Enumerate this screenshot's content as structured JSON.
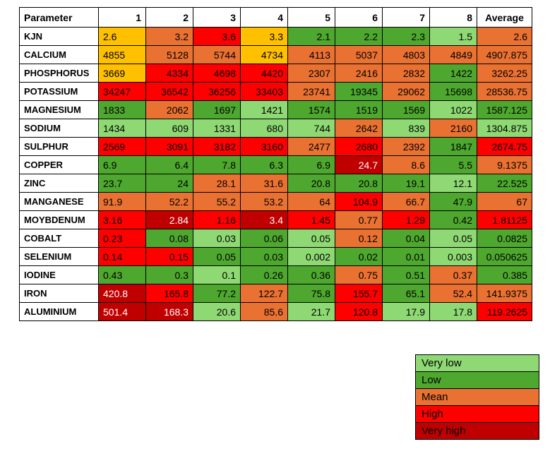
{
  "chart_data": {
    "type": "heatmap",
    "title": "",
    "columns": [
      "Parameter",
      "1",
      "2",
      "3",
      "4",
      "5",
      "6",
      "7",
      "8",
      "Average"
    ],
    "colors": {
      "vlow": "#8ED973",
      "low": "#4EA72E",
      "gold": "#FFC000",
      "mean": "#E97132",
      "high": "#FF0000",
      "vhigh": "#C00000"
    },
    "text_default": "#000000",
    "text_on_vhigh": "#FFFFFF",
    "rows": [
      {
        "label": "KJN",
        "cells": [
          {
            "v": "2.6",
            "c": "gold"
          },
          {
            "v": "3.2",
            "c": "mean"
          },
          {
            "v": "3.6",
            "c": "high"
          },
          {
            "v": "3.3",
            "c": "gold"
          },
          {
            "v": "2.1",
            "c": "low"
          },
          {
            "v": "2.2",
            "c": "low"
          },
          {
            "v": "2.3",
            "c": "low"
          },
          {
            "v": "1.5",
            "c": "vlow"
          },
          {
            "v": "2.6",
            "c": "mean"
          }
        ]
      },
      {
        "label": "CALCIUM",
        "cells": [
          {
            "v": "4855",
            "c": "gold"
          },
          {
            "v": "5128",
            "c": "mean"
          },
          {
            "v": "5744",
            "c": "mean"
          },
          {
            "v": "4734",
            "c": "gold"
          },
          {
            "v": "4113",
            "c": "mean"
          },
          {
            "v": "5037",
            "c": "mean"
          },
          {
            "v": "4803",
            "c": "mean"
          },
          {
            "v": "4849",
            "c": "mean"
          },
          {
            "v": "4907.875",
            "c": "mean"
          }
        ]
      },
      {
        "label": "PHOSPHORUS",
        "cells": [
          {
            "v": "3669",
            "c": "gold"
          },
          {
            "v": "4334",
            "c": "high"
          },
          {
            "v": "4698",
            "c": "high"
          },
          {
            "v": "4420",
            "c": "high"
          },
          {
            "v": "2307",
            "c": "mean"
          },
          {
            "v": "2416",
            "c": "mean"
          },
          {
            "v": "2832",
            "c": "mean"
          },
          {
            "v": "1422",
            "c": "low"
          },
          {
            "v": "3262.25",
            "c": "mean"
          }
        ]
      },
      {
        "label": "POTASSIUM",
        "cells": [
          {
            "v": "34247",
            "c": "high"
          },
          {
            "v": "36542",
            "c": "high"
          },
          {
            "v": "36256",
            "c": "high"
          },
          {
            "v": "33403",
            "c": "high"
          },
          {
            "v": "23741",
            "c": "mean"
          },
          {
            "v": "19345",
            "c": "low"
          },
          {
            "v": "29062",
            "c": "mean"
          },
          {
            "v": "15698",
            "c": "low"
          },
          {
            "v": "28536.75",
            "c": "mean"
          }
        ]
      },
      {
        "label": "MAGNESIUM",
        "cells": [
          {
            "v": "1833",
            "c": "low"
          },
          {
            "v": "2062",
            "c": "mean"
          },
          {
            "v": "1697",
            "c": "low"
          },
          {
            "v": "1421",
            "c": "vlow"
          },
          {
            "v": "1574",
            "c": "low"
          },
          {
            "v": "1519",
            "c": "low"
          },
          {
            "v": "1569",
            "c": "low"
          },
          {
            "v": "1022",
            "c": "vlow"
          },
          {
            "v": "1587.125",
            "c": "low"
          }
        ]
      },
      {
        "label": "SODIUM",
        "cells": [
          {
            "v": "1434",
            "c": "vlow"
          },
          {
            "v": "609",
            "c": "vlow"
          },
          {
            "v": "1331",
            "c": "vlow"
          },
          {
            "v": "680",
            "c": "vlow"
          },
          {
            "v": "744",
            "c": "vlow"
          },
          {
            "v": "2642",
            "c": "mean"
          },
          {
            "v": "839",
            "c": "vlow"
          },
          {
            "v": "2160",
            "c": "mean"
          },
          {
            "v": "1304.875",
            "c": "vlow"
          }
        ]
      },
      {
        "label": "SULPHUR",
        "cells": [
          {
            "v": "2569",
            "c": "high"
          },
          {
            "v": "3091",
            "c": "high"
          },
          {
            "v": "3182",
            "c": "high"
          },
          {
            "v": "3160",
            "c": "high"
          },
          {
            "v": "2477",
            "c": "mean"
          },
          {
            "v": "2680",
            "c": "high"
          },
          {
            "v": "2392",
            "c": "mean"
          },
          {
            "v": "1847",
            "c": "low"
          },
          {
            "v": "2674.75",
            "c": "high"
          }
        ]
      },
      {
        "label": "COPPER",
        "cells": [
          {
            "v": "6.9",
            "c": "low"
          },
          {
            "v": "6.4",
            "c": "low"
          },
          {
            "v": "7.8",
            "c": "low"
          },
          {
            "v": "6.3",
            "c": "low"
          },
          {
            "v": "6.9",
            "c": "low"
          },
          {
            "v": "24.7",
            "c": "vhigh"
          },
          {
            "v": "8.6",
            "c": "mean"
          },
          {
            "v": "5.5",
            "c": "low"
          },
          {
            "v": "9.1375",
            "c": "mean"
          }
        ]
      },
      {
        "label": "ZINC",
        "cells": [
          {
            "v": "23.7",
            "c": "low"
          },
          {
            "v": "24",
            "c": "low"
          },
          {
            "v": "28.1",
            "c": "mean"
          },
          {
            "v": "31.6",
            "c": "mean"
          },
          {
            "v": "20.8",
            "c": "low"
          },
          {
            "v": "20.8",
            "c": "low"
          },
          {
            "v": "19.1",
            "c": "low"
          },
          {
            "v": "12.1",
            "c": "vlow"
          },
          {
            "v": "22.525",
            "c": "low"
          }
        ]
      },
      {
        "label": "MANGANESE",
        "cells": [
          {
            "v": "91.9",
            "c": "mean"
          },
          {
            "v": "52.2",
            "c": "mean"
          },
          {
            "v": "55.2",
            "c": "mean"
          },
          {
            "v": "53.2",
            "c": "mean"
          },
          {
            "v": "64",
            "c": "mean"
          },
          {
            "v": "104.9",
            "c": "high"
          },
          {
            "v": "66.7",
            "c": "mean"
          },
          {
            "v": "47.9",
            "c": "low"
          },
          {
            "v": "67",
            "c": "mean"
          }
        ]
      },
      {
        "label": "MOYBDENUM",
        "cells": [
          {
            "v": "3.16",
            "c": "high"
          },
          {
            "v": "2.84",
            "c": "vhigh"
          },
          {
            "v": "1.16",
            "c": "high"
          },
          {
            "v": "3.4",
            "c": "vhigh"
          },
          {
            "v": "1.45",
            "c": "high"
          },
          {
            "v": "0.77",
            "c": "mean"
          },
          {
            "v": "1.29",
            "c": "high"
          },
          {
            "v": "0.42",
            "c": "low"
          },
          {
            "v": "1.81125",
            "c": "high"
          }
        ]
      },
      {
        "label": "COBALT",
        "cells": [
          {
            "v": "0.23",
            "c": "high"
          },
          {
            "v": "0.08",
            "c": "low"
          },
          {
            "v": "0.03",
            "c": "vlow"
          },
          {
            "v": "0.06",
            "c": "low"
          },
          {
            "v": "0.05",
            "c": "vlow"
          },
          {
            "v": "0.12",
            "c": "mean"
          },
          {
            "v": "0.04",
            "c": "low"
          },
          {
            "v": "0.05",
            "c": "vlow"
          },
          {
            "v": "0.0825",
            "c": "low"
          }
        ]
      },
      {
        "label": "SELENIUM",
        "cells": [
          {
            "v": "0.14",
            "c": "high"
          },
          {
            "v": "0.15",
            "c": "high"
          },
          {
            "v": "0.05",
            "c": "low"
          },
          {
            "v": "0.03",
            "c": "low"
          },
          {
            "v": "0.002",
            "c": "vlow"
          },
          {
            "v": "0.02",
            "c": "low"
          },
          {
            "v": "0.01",
            "c": "low"
          },
          {
            "v": "0.003",
            "c": "vlow"
          },
          {
            "v": "0.050625",
            "c": "low"
          }
        ]
      },
      {
        "label": "IODINE",
        "cells": [
          {
            "v": "0.43",
            "c": "low"
          },
          {
            "v": "0.3",
            "c": "low"
          },
          {
            "v": "0.1",
            "c": "vlow"
          },
          {
            "v": "0.26",
            "c": "low"
          },
          {
            "v": "0.36",
            "c": "low"
          },
          {
            "v": "0.75",
            "c": "mean"
          },
          {
            "v": "0.51",
            "c": "low"
          },
          {
            "v": "0.37",
            "c": "mean"
          },
          {
            "v": "0.385",
            "c": "low"
          }
        ]
      },
      {
        "label": "IRON",
        "cells": [
          {
            "v": "420.8",
            "c": "vhigh"
          },
          {
            "v": "165.8",
            "c": "high"
          },
          {
            "v": "77.2",
            "c": "low"
          },
          {
            "v": "122.7",
            "c": "mean"
          },
          {
            "v": "75.8",
            "c": "low"
          },
          {
            "v": "155.7",
            "c": "high"
          },
          {
            "v": "65.1",
            "c": "low"
          },
          {
            "v": "52.4",
            "c": "mean"
          },
          {
            "v": "141.9375",
            "c": "mean"
          }
        ]
      },
      {
        "label": "ALUMINIUM",
        "cells": [
          {
            "v": "501.4",
            "c": "vhigh"
          },
          {
            "v": "168.3",
            "c": "vhigh"
          },
          {
            "v": "20.6",
            "c": "vlow"
          },
          {
            "v": "85.6",
            "c": "mean"
          },
          {
            "v": "21.7",
            "c": "vlow"
          },
          {
            "v": "120.8",
            "c": "high"
          },
          {
            "v": "17.9",
            "c": "vlow"
          },
          {
            "v": "17.8",
            "c": "vlow"
          },
          {
            "v": "119.2625",
            "c": "high"
          }
        ]
      }
    ],
    "legend": [
      {
        "label": "Very low",
        "c": "vlow"
      },
      {
        "label": "Low",
        "c": "low"
      },
      {
        "label": "Mean",
        "c": "mean"
      },
      {
        "label": "High",
        "c": "high"
      },
      {
        "label": "Very high",
        "c": "vhigh"
      }
    ],
    "legend_position": "bottom-right",
    "grid": true
  }
}
